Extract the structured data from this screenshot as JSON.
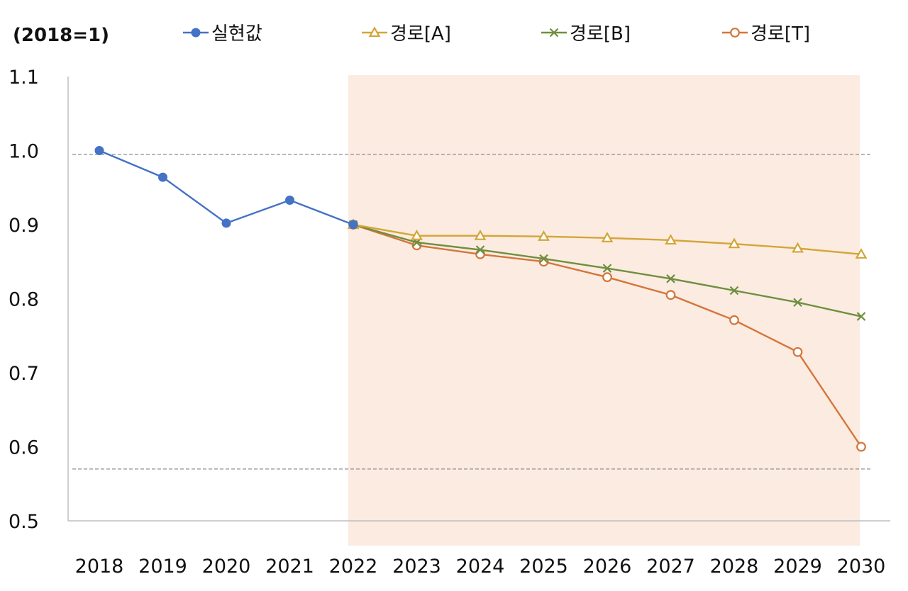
{
  "chart_data": {
    "type": "line",
    "unit_label": "(2018=1)",
    "categories": [
      "2018",
      "2019",
      "2020",
      "2021",
      "2022",
      "2023",
      "2024",
      "2025",
      "2026",
      "2027",
      "2028",
      "2029",
      "2030"
    ],
    "ylim": [
      0.5,
      1.1
    ],
    "yticks": [
      "0.5",
      "0.6",
      "0.7",
      "0.8",
      "0.9",
      "1.0",
      "1.1"
    ],
    "reference_lines": [
      0.995,
      0.57
    ],
    "shaded_range": [
      "2022",
      "2030"
    ],
    "shade_color": "#fbebe1",
    "legend_position": "top",
    "grid": false,
    "series": [
      {
        "name": "실현값",
        "color": "#4472c4",
        "marker": "dot",
        "values": [
          1.0,
          0.964,
          0.902,
          0.933,
          0.9,
          null,
          null,
          null,
          null,
          null,
          null,
          null,
          null
        ]
      },
      {
        "name": "경로[A]",
        "color": "#d4a537",
        "marker": "triangle",
        "values": [
          null,
          null,
          null,
          null,
          0.9,
          0.885,
          0.885,
          0.884,
          0.882,
          0.879,
          0.874,
          0.868,
          0.86
        ]
      },
      {
        "name": "경로[B]",
        "color": "#6e8f3e",
        "marker": "x",
        "values": [
          null,
          null,
          null,
          null,
          0.9,
          0.876,
          0.866,
          0.854,
          0.841,
          0.827,
          0.811,
          0.795,
          0.776
        ]
      },
      {
        "name": "경로[T]",
        "color": "#d4753a",
        "marker": "circle",
        "values": [
          null,
          null,
          null,
          null,
          0.9,
          0.872,
          0.86,
          0.85,
          0.829,
          0.805,
          0.771,
          0.728,
          0.6
        ]
      }
    ]
  }
}
